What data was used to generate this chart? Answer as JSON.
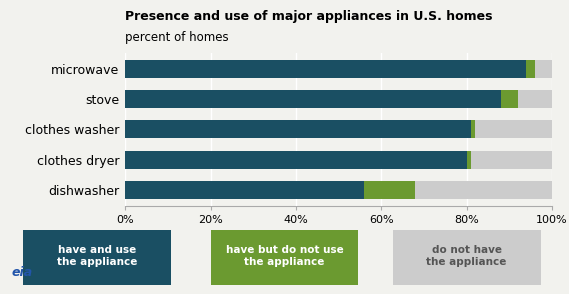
{
  "categories": [
    "microwave",
    "stove",
    "clothes washer",
    "clothes dryer",
    "dishwasher"
  ],
  "have_and_use": [
    94,
    88,
    81,
    80,
    56
  ],
  "have_not_use": [
    2,
    4,
    1,
    1,
    12
  ],
  "do_not_have": [
    4,
    8,
    18,
    19,
    32
  ],
  "color_have_use": "#1a4f63",
  "color_have_not_use": "#6b9a30",
  "color_do_not_have": "#cccccc",
  "title_line1": "Presence and use of major appliances in U.S. homes",
  "title_line2": "percent of homes",
  "legend_labels": [
    "have and use\nthe appliance",
    "have but do not use\nthe appliance",
    "do not have\nthe appliance"
  ],
  "xlim": [
    0,
    100
  ],
  "xtick_values": [
    0,
    20,
    40,
    60,
    80,
    100
  ],
  "xtick_labels": [
    "0%",
    "20%",
    "40%",
    "60%",
    "80%",
    "100%"
  ],
  "bg_color": "#f2f2ee"
}
